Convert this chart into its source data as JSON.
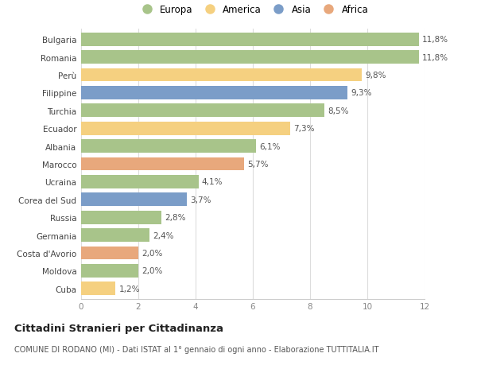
{
  "categories": [
    "Bulgaria",
    "Romania",
    "Perù",
    "Filippine",
    "Turchia",
    "Ecuador",
    "Albania",
    "Marocco",
    "Ucraina",
    "Corea del Sud",
    "Russia",
    "Germania",
    "Costa d'Avorio",
    "Moldova",
    "Cuba"
  ],
  "values": [
    11.8,
    11.8,
    9.8,
    9.3,
    8.5,
    7.3,
    6.1,
    5.7,
    4.1,
    3.7,
    2.8,
    2.4,
    2.0,
    2.0,
    1.2
  ],
  "labels": [
    "11,8%",
    "11,8%",
    "9,8%",
    "9,3%",
    "8,5%",
    "7,3%",
    "6,1%",
    "5,7%",
    "4,1%",
    "3,7%",
    "2,8%",
    "2,4%",
    "2,0%",
    "2,0%",
    "1,2%"
  ],
  "continent": [
    "Europa",
    "Europa",
    "America",
    "Asia",
    "Europa",
    "America",
    "Europa",
    "Africa",
    "Europa",
    "Asia",
    "Europa",
    "Europa",
    "Africa",
    "Europa",
    "America"
  ],
  "colors": {
    "Europa": "#a8c48a",
    "America": "#f5d080",
    "Asia": "#7b9dc8",
    "Africa": "#e8a87c"
  },
  "legend_order": [
    "Europa",
    "America",
    "Asia",
    "Africa"
  ],
  "title": "Cittadini Stranieri per Cittadinanza",
  "subtitle": "COMUNE DI RODANO (MI) - Dati ISTAT al 1° gennaio di ogni anno - Elaborazione TUTTITALIA.IT",
  "xlim": [
    0,
    12
  ],
  "xticks": [
    0,
    2,
    4,
    6,
    8,
    10,
    12
  ],
  "bg_color": "#ffffff",
  "bar_height": 0.75
}
